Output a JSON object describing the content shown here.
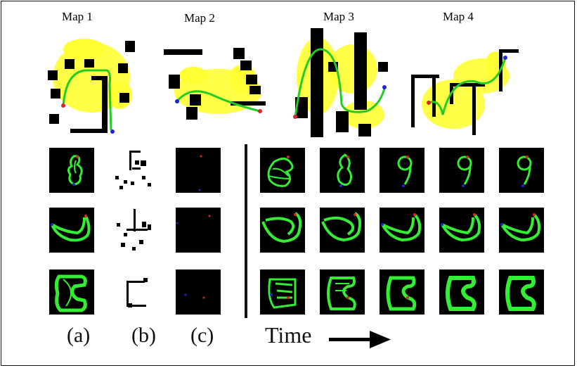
{
  "maps": [
    {
      "title": "Map 1"
    },
    {
      "title": "Map 2"
    },
    {
      "title": "Map 3"
    },
    {
      "title": "Map 4"
    }
  ],
  "column_labels": [
    "(a)",
    "(b)",
    "(c)"
  ],
  "time_label": "Time",
  "colors": {
    "sample_points": "#ffff33",
    "path_line": "#22cc22",
    "start_dot": "#dd2222",
    "goal_dot": "#2222dd",
    "obstacle": "#000000",
    "trajectory": "#33ee33",
    "panel_bg": "#000000"
  },
  "rows": [
    {
      "name": "row-1",
      "panels": 6
    },
    {
      "name": "row-2",
      "panels": 6
    },
    {
      "name": "row-3",
      "panels": 6
    }
  ],
  "icons": [
    "arrow-right-icon"
  ]
}
